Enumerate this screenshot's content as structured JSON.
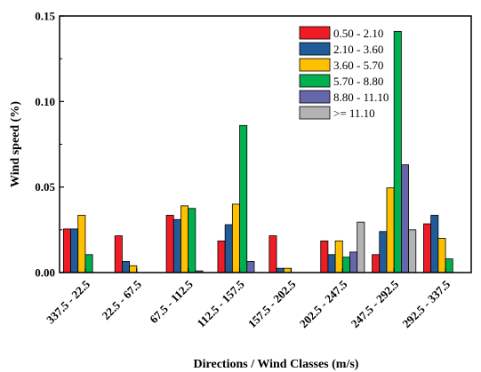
{
  "chart_data": {
    "type": "bar",
    "xlabel": "Directions / Wind Classes (m/s)",
    "ylabel": "Wind speed (%)",
    "ylim": [
      0,
      0.15
    ],
    "yticks": [
      "0.00",
      "0.05",
      "0.10",
      "0.15"
    ],
    "grid": false,
    "legend_position": "top-right",
    "categories": [
      "337.5 - 22.5",
      "22.5 - 67.5",
      "67.5 - 112.5",
      "112.5 - 157.5",
      "157.5 - 202.5",
      "202.5 - 247.5",
      "247.5 - 292.5",
      "292.5 - 337.5"
    ],
    "series": [
      {
        "name": "0.50 - 2.10",
        "color": "#ee1c25",
        "values": [
          0.0255,
          0.0215,
          0.0335,
          0.0185,
          0.0215,
          0.0185,
          0.0105,
          0.0285
        ]
      },
      {
        "name": "2.10 - 3.60",
        "color": "#1f5c99",
        "values": [
          0.0255,
          0.0065,
          0.031,
          0.028,
          0.0025,
          0.0105,
          0.024,
          0.0335
        ]
      },
      {
        "name": "3.60 - 5.70",
        "color": "#ffc000",
        "values": [
          0.0335,
          0.004,
          0.039,
          0.04,
          0.0025,
          0.0185,
          0.0495,
          0.02
        ]
      },
      {
        "name": "5.70 - 8.80",
        "color": "#00b050",
        "values": [
          0.0105,
          0,
          0.0375,
          0.086,
          0,
          0.009,
          0.141,
          0.008
        ]
      },
      {
        "name": "8.80 - 11.10",
        "color": "#6666aa",
        "values": [
          0,
          0,
          0.001,
          0.0065,
          0,
          0.012,
          0.063,
          0
        ]
      },
      {
        "name": ">= 11.10",
        "color": "#b3b3b3",
        "values": [
          0,
          0,
          0,
          0,
          0,
          0.0295,
          0.025,
          0
        ]
      }
    ]
  }
}
